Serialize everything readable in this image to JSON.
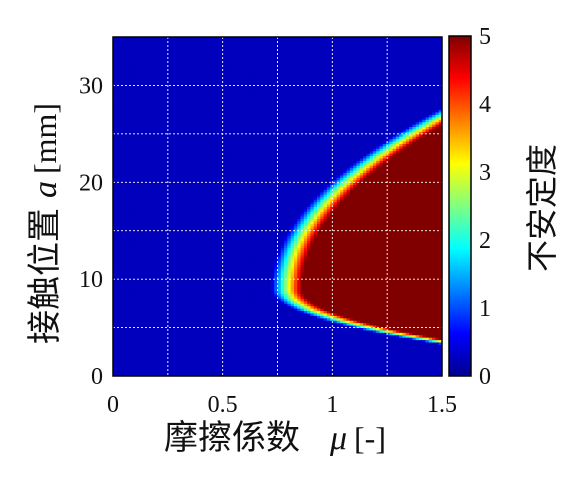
{
  "chart_data": {
    "type": "heatmap",
    "title": "",
    "xlabel": {
      "text": "摩擦係数",
      "symbol": "μ",
      "unit": "[-]"
    },
    "ylabel": {
      "text": "接触位置",
      "symbol": "a",
      "unit": "[mm]"
    },
    "xlim": [
      0,
      1.5
    ],
    "ylim": [
      0,
      35
    ],
    "x_ticks": [
      "0",
      "0.5",
      "1",
      "1.5"
    ],
    "y_ticks": [
      "0",
      "10",
      "20",
      "30"
    ],
    "grid": true,
    "colorbar": {
      "label": "不安定度",
      "range": [
        0,
        5
      ],
      "ticks": [
        "0",
        "1",
        "2",
        "3",
        "4",
        "5"
      ],
      "colormap": "jet"
    },
    "unstable_region": {
      "description_points": [
        {
          "mu": 0.78,
          "a": 9
        },
        {
          "mu": 1.5,
          "a": 27
        },
        {
          "mu": 1.5,
          "a": 3.5
        }
      ],
      "max_value": 5,
      "background_value": 0
    }
  },
  "colors": {
    "background_low": "#00008f",
    "high": "#800000",
    "grid": "#ffffff"
  }
}
